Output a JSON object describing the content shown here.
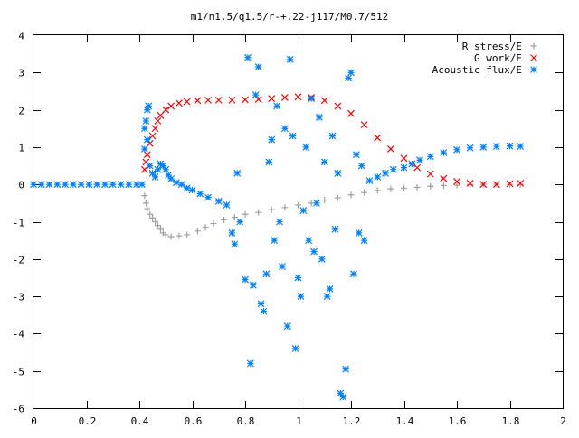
{
  "chart_data": {
    "type": "scatter",
    "title": "m1/n1.5/q1.5/r-+.22-j117/M0.7/512",
    "xlabel": "",
    "ylabel": "",
    "xlim": [
      0,
      2
    ],
    "ylim": [
      -6,
      4
    ],
    "xticks": [
      "0",
      "0.2",
      "0.4",
      "0.6",
      "0.8",
      "1",
      "1.2",
      "1.4",
      "1.6",
      "1.8",
      "2"
    ],
    "yticks": [
      "4",
      "3",
      "2",
      "1",
      "0",
      "-1",
      "-2",
      "-3",
      "-4",
      "-5",
      "-6"
    ],
    "grid": false,
    "legend_position": "top-right",
    "series": [
      {
        "name": "R stress/E",
        "marker": "plus",
        "color": "#a0a0a0",
        "points": [
          [
            0.42,
            -0.3
          ],
          [
            0.425,
            -0.5
          ],
          [
            0.43,
            -0.65
          ],
          [
            0.44,
            -0.8
          ],
          [
            0.45,
            -0.9
          ],
          [
            0.46,
            -1.0
          ],
          [
            0.47,
            -1.1
          ],
          [
            0.48,
            -1.2
          ],
          [
            0.49,
            -1.3
          ],
          [
            0.5,
            -1.35
          ],
          [
            0.52,
            -1.4
          ],
          [
            0.55,
            -1.38
          ],
          [
            0.58,
            -1.35
          ],
          [
            0.62,
            -1.25
          ],
          [
            0.65,
            -1.15
          ],
          [
            0.68,
            -1.05
          ],
          [
            0.72,
            -0.95
          ],
          [
            0.76,
            -0.88
          ],
          [
            0.8,
            -0.8
          ],
          [
            0.85,
            -0.75
          ],
          [
            0.9,
            -0.68
          ],
          [
            0.95,
            -0.62
          ],
          [
            1.0,
            -0.55
          ],
          [
            1.05,
            -0.5
          ],
          [
            1.1,
            -0.42
          ],
          [
            1.15,
            -0.36
          ],
          [
            1.2,
            -0.28
          ],
          [
            1.25,
            -0.22
          ],
          [
            1.3,
            -0.16
          ],
          [
            1.35,
            -0.12
          ],
          [
            1.4,
            -0.1
          ],
          [
            1.45,
            -0.08
          ],
          [
            1.5,
            -0.05
          ],
          [
            1.55,
            -0.03
          ],
          [
            1.6,
            -0.02
          ],
          [
            1.65,
            0.0
          ],
          [
            1.7,
            0.0
          ],
          [
            1.75,
            0.0
          ],
          [
            1.8,
            0.0
          ],
          [
            1.84,
            0.0
          ]
        ]
      },
      {
        "name": "G work/E",
        "marker": "cross",
        "color": "#ff0000",
        "points": [
          [
            0.42,
            0.4
          ],
          [
            0.425,
            0.6
          ],
          [
            0.43,
            0.8
          ],
          [
            0.44,
            1.1
          ],
          [
            0.45,
            1.3
          ],
          [
            0.46,
            1.5
          ],
          [
            0.47,
            1.7
          ],
          [
            0.48,
            1.85
          ],
          [
            0.5,
            2.0
          ],
          [
            0.52,
            2.1
          ],
          [
            0.55,
            2.18
          ],
          [
            0.58,
            2.22
          ],
          [
            0.62,
            2.25
          ],
          [
            0.66,
            2.26
          ],
          [
            0.7,
            2.26
          ],
          [
            0.75,
            2.26
          ],
          [
            0.8,
            2.27
          ],
          [
            0.85,
            2.28
          ],
          [
            0.9,
            2.3
          ],
          [
            0.95,
            2.33
          ],
          [
            1.0,
            2.35
          ],
          [
            1.05,
            2.33
          ],
          [
            1.1,
            2.25
          ],
          [
            1.15,
            2.1
          ],
          [
            1.2,
            1.9
          ],
          [
            1.25,
            1.6
          ],
          [
            1.3,
            1.25
          ],
          [
            1.35,
            0.95
          ],
          [
            1.4,
            0.7
          ],
          [
            1.45,
            0.45
          ],
          [
            1.5,
            0.28
          ],
          [
            1.55,
            0.16
          ],
          [
            1.6,
            0.08
          ],
          [
            1.65,
            0.03
          ],
          [
            1.7,
            0.0
          ],
          [
            1.75,
            0.0
          ],
          [
            1.8,
            0.02
          ],
          [
            1.84,
            0.03
          ]
        ]
      },
      {
        "name": "Acoustic flux/E",
        "marker": "star",
        "color": "#0080ff",
        "points": [
          [
            0.0,
            0.0
          ],
          [
            0.03,
            0.0
          ],
          [
            0.06,
            0.0
          ],
          [
            0.09,
            0.0
          ],
          [
            0.12,
            0.0
          ],
          [
            0.15,
            0.0
          ],
          [
            0.18,
            0.0
          ],
          [
            0.21,
            0.0
          ],
          [
            0.24,
            0.0
          ],
          [
            0.27,
            0.0
          ],
          [
            0.3,
            0.0
          ],
          [
            0.33,
            0.0
          ],
          [
            0.36,
            0.0
          ],
          [
            0.39,
            0.0
          ],
          [
            0.41,
            0.0
          ],
          [
            0.42,
            1.5
          ],
          [
            0.425,
            1.7
          ],
          [
            0.43,
            2.0
          ],
          [
            0.435,
            2.1
          ],
          [
            0.43,
            1.2
          ],
          [
            0.42,
            0.95
          ],
          [
            0.44,
            0.5
          ],
          [
            0.45,
            0.3
          ],
          [
            0.46,
            0.2
          ],
          [
            0.47,
            0.4
          ],
          [
            0.48,
            0.55
          ],
          [
            0.49,
            0.5
          ],
          [
            0.5,
            0.4
          ],
          [
            0.51,
            0.25
          ],
          [
            0.52,
            0.15
          ],
          [
            0.54,
            0.05
          ],
          [
            0.56,
            0.0
          ],
          [
            0.58,
            -0.1
          ],
          [
            0.6,
            -0.15
          ],
          [
            0.63,
            -0.25
          ],
          [
            0.66,
            -0.35
          ],
          [
            0.7,
            -0.45
          ],
          [
            0.73,
            -0.55
          ],
          [
            0.75,
            -1.3
          ],
          [
            0.76,
            -1.6
          ],
          [
            0.77,
            0.3
          ],
          [
            0.78,
            -1.0
          ],
          [
            0.8,
            -2.55
          ],
          [
            0.81,
            3.4
          ],
          [
            0.82,
            -4.8
          ],
          [
            0.83,
            -2.7
          ],
          [
            0.84,
            2.4
          ],
          [
            0.85,
            3.15
          ],
          [
            0.86,
            -3.2
          ],
          [
            0.87,
            -3.4
          ],
          [
            0.88,
            -2.4
          ],
          [
            0.89,
            0.6
          ],
          [
            0.9,
            1.2
          ],
          [
            0.91,
            -1.5
          ],
          [
            0.92,
            2.1
          ],
          [
            0.93,
            -1.0
          ],
          [
            0.94,
            -2.2
          ],
          [
            0.95,
            1.5
          ],
          [
            0.96,
            -3.8
          ],
          [
            0.97,
            3.35
          ],
          [
            0.98,
            1.3
          ],
          [
            0.99,
            -4.4
          ],
          [
            1.0,
            -2.5
          ],
          [
            1.01,
            -3.0
          ],
          [
            1.02,
            -0.7
          ],
          [
            1.03,
            1.0
          ],
          [
            1.04,
            -1.5
          ],
          [
            1.05,
            2.3
          ],
          [
            1.06,
            -1.8
          ],
          [
            1.07,
            -0.5
          ],
          [
            1.08,
            1.8
          ],
          [
            1.09,
            -2.0
          ],
          [
            1.1,
            0.6
          ],
          [
            1.11,
            -3.0
          ],
          [
            1.12,
            -2.8
          ],
          [
            1.13,
            1.3
          ],
          [
            1.14,
            -1.2
          ],
          [
            1.15,
            0.3
          ],
          [
            1.16,
            -5.6
          ],
          [
            1.17,
            -5.7
          ],
          [
            1.18,
            -4.95
          ],
          [
            1.19,
            2.85
          ],
          [
            1.2,
            3.0
          ],
          [
            1.21,
            -2.4
          ],
          [
            1.22,
            0.8
          ],
          [
            1.23,
            -1.3
          ],
          [
            1.24,
            0.5
          ],
          [
            1.25,
            -1.5
          ],
          [
            1.27,
            0.1
          ],
          [
            1.3,
            0.2
          ],
          [
            1.33,
            0.3
          ],
          [
            1.36,
            0.4
          ],
          [
            1.4,
            0.45
          ],
          [
            1.43,
            0.55
          ],
          [
            1.46,
            0.65
          ],
          [
            1.5,
            0.75
          ],
          [
            1.55,
            0.85
          ],
          [
            1.6,
            0.93
          ],
          [
            1.65,
            0.98
          ],
          [
            1.7,
            1.0
          ],
          [
            1.75,
            1.02
          ],
          [
            1.8,
            1.03
          ],
          [
            1.84,
            1.02
          ]
        ]
      }
    ]
  }
}
